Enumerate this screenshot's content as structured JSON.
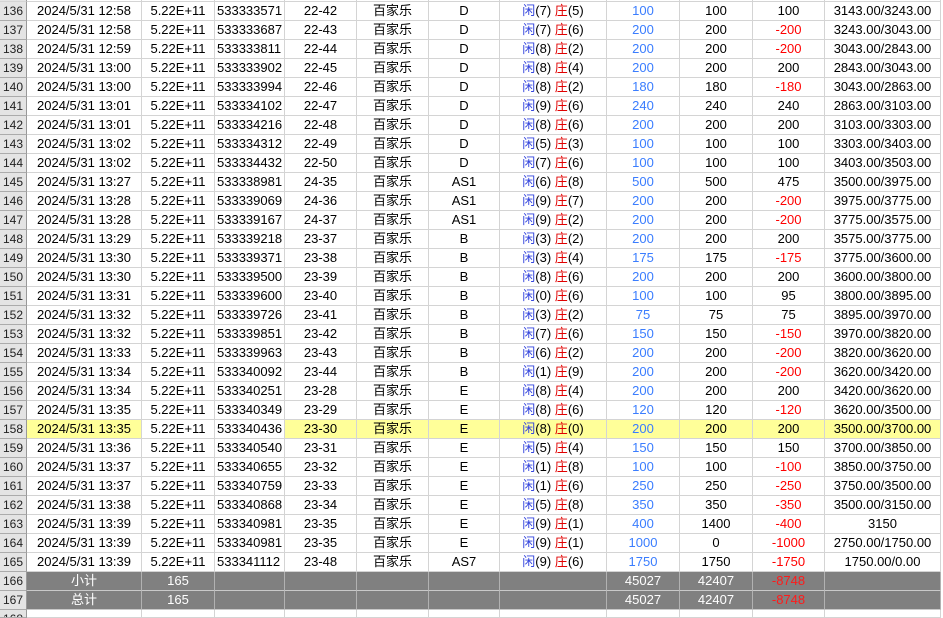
{
  "app": "spreadsheet-betting-ledger",
  "score_labels": {
    "player": "闲",
    "banker": "庄"
  },
  "colors": {
    "highlight_yellow": "#FFFF99",
    "summary_gray": "#808080",
    "bet_blue": "#3A7DFF",
    "player_blue": "#3344DD",
    "banker_red": "#E00000",
    "loss_red": "#FF0000",
    "gridline": "#D4D4D4",
    "row_header_bg": "#E4E4E4"
  },
  "partial_bottom_row_num": "168",
  "rows": [
    {
      "num": "136",
      "date": "2024/5/31 12:58",
      "sci": "5.22E+11",
      "account": "533333571",
      "table": "22-42",
      "game": "百家乐",
      "group": "D",
      "p": "7",
      "b": "5",
      "bet": "100",
      "valid": "100",
      "result": "100",
      "balance": "3143.00/3243.00",
      "hl": false
    },
    {
      "num": "137",
      "date": "2024/5/31 12:58",
      "sci": "5.22E+11",
      "account": "533333687",
      "table": "22-43",
      "game": "百家乐",
      "group": "D",
      "p": "7",
      "b": "6",
      "bet": "200",
      "valid": "200",
      "result": "-200",
      "balance": "3243.00/3043.00",
      "hl": false
    },
    {
      "num": "138",
      "date": "2024/5/31 12:59",
      "sci": "5.22E+11",
      "account": "533333811",
      "table": "22-44",
      "game": "百家乐",
      "group": "D",
      "p": "8",
      "b": "2",
      "bet": "200",
      "valid": "200",
      "result": "-200",
      "balance": "3043.00/2843.00",
      "hl": false
    },
    {
      "num": "139",
      "date": "2024/5/31 13:00",
      "sci": "5.22E+11",
      "account": "533333902",
      "table": "22-45",
      "game": "百家乐",
      "group": "D",
      "p": "8",
      "b": "4",
      "bet": "200",
      "valid": "200",
      "result": "200",
      "balance": "2843.00/3043.00",
      "hl": false
    },
    {
      "num": "140",
      "date": "2024/5/31 13:00",
      "sci": "5.22E+11",
      "account": "533333994",
      "table": "22-46",
      "game": "百家乐",
      "group": "D",
      "p": "8",
      "b": "2",
      "bet": "180",
      "valid": "180",
      "result": "-180",
      "balance": "3043.00/2863.00",
      "hl": false
    },
    {
      "num": "141",
      "date": "2024/5/31 13:01",
      "sci": "5.22E+11",
      "account": "533334102",
      "table": "22-47",
      "game": "百家乐",
      "group": "D",
      "p": "9",
      "b": "6",
      "bet": "240",
      "valid": "240",
      "result": "240",
      "balance": "2863.00/3103.00",
      "hl": false
    },
    {
      "num": "142",
      "date": "2024/5/31 13:01",
      "sci": "5.22E+11",
      "account": "533334216",
      "table": "22-48",
      "game": "百家乐",
      "group": "D",
      "p": "8",
      "b": "6",
      "bet": "200",
      "valid": "200",
      "result": "200",
      "balance": "3103.00/3303.00",
      "hl": false
    },
    {
      "num": "143",
      "date": "2024/5/31 13:02",
      "sci": "5.22E+11",
      "account": "533334312",
      "table": "22-49",
      "game": "百家乐",
      "group": "D",
      "p": "5",
      "b": "3",
      "bet": "100",
      "valid": "100",
      "result": "100",
      "balance": "3303.00/3403.00",
      "hl": false
    },
    {
      "num": "144",
      "date": "2024/5/31 13:02",
      "sci": "5.22E+11",
      "account": "533334432",
      "table": "22-50",
      "game": "百家乐",
      "group": "D",
      "p": "7",
      "b": "6",
      "bet": "100",
      "valid": "100",
      "result": "100",
      "balance": "3403.00/3503.00",
      "hl": false
    },
    {
      "num": "145",
      "date": "2024/5/31 13:27",
      "sci": "5.22E+11",
      "account": "533338981",
      "table": "24-35",
      "game": "百家乐",
      "group": "AS1",
      "p": "6",
      "b": "8",
      "bet": "500",
      "valid": "500",
      "result": "475",
      "balance": "3500.00/3975.00",
      "hl": false
    },
    {
      "num": "146",
      "date": "2024/5/31 13:28",
      "sci": "5.22E+11",
      "account": "533339069",
      "table": "24-36",
      "game": "百家乐",
      "group": "AS1",
      "p": "9",
      "b": "7",
      "bet": "200",
      "valid": "200",
      "result": "-200",
      "balance": "3975.00/3775.00",
      "hl": false
    },
    {
      "num": "147",
      "date": "2024/5/31 13:28",
      "sci": "5.22E+11",
      "account": "533339167",
      "table": "24-37",
      "game": "百家乐",
      "group": "AS1",
      "p": "9",
      "b": "2",
      "bet": "200",
      "valid": "200",
      "result": "-200",
      "balance": "3775.00/3575.00",
      "hl": false
    },
    {
      "num": "148",
      "date": "2024/5/31 13:29",
      "sci": "5.22E+11",
      "account": "533339218",
      "table": "23-37",
      "game": "百家乐",
      "group": "B",
      "p": "3",
      "b": "2",
      "bet": "200",
      "valid": "200",
      "result": "200",
      "balance": "3575.00/3775.00",
      "hl": false
    },
    {
      "num": "149",
      "date": "2024/5/31 13:30",
      "sci": "5.22E+11",
      "account": "533339371",
      "table": "23-38",
      "game": "百家乐",
      "group": "B",
      "p": "3",
      "b": "4",
      "bet": "175",
      "valid": "175",
      "result": "-175",
      "balance": "3775.00/3600.00",
      "hl": false
    },
    {
      "num": "150",
      "date": "2024/5/31 13:30",
      "sci": "5.22E+11",
      "account": "533339500",
      "table": "23-39",
      "game": "百家乐",
      "group": "B",
      "p": "8",
      "b": "6",
      "bet": "200",
      "valid": "200",
      "result": "200",
      "balance": "3600.00/3800.00",
      "hl": false
    },
    {
      "num": "151",
      "date": "2024/5/31 13:31",
      "sci": "5.22E+11",
      "account": "533339600",
      "table": "23-40",
      "game": "百家乐",
      "group": "B",
      "p": "0",
      "b": "6",
      "bet": "100",
      "valid": "100",
      "result": "95",
      "balance": "3800.00/3895.00",
      "hl": false
    },
    {
      "num": "152",
      "date": "2024/5/31 13:32",
      "sci": "5.22E+11",
      "account": "533339726",
      "table": "23-41",
      "game": "百家乐",
      "group": "B",
      "p": "3",
      "b": "2",
      "bet": "75",
      "valid": "75",
      "result": "75",
      "balance": "3895.00/3970.00",
      "hl": false
    },
    {
      "num": "153",
      "date": "2024/5/31 13:32",
      "sci": "5.22E+11",
      "account": "533339851",
      "table": "23-42",
      "game": "百家乐",
      "group": "B",
      "p": "7",
      "b": "6",
      "bet": "150",
      "valid": "150",
      "result": "-150",
      "balance": "3970.00/3820.00",
      "hl": false
    },
    {
      "num": "154",
      "date": "2024/5/31 13:33",
      "sci": "5.22E+11",
      "account": "533339963",
      "table": "23-43",
      "game": "百家乐",
      "group": "B",
      "p": "6",
      "b": "2",
      "bet": "200",
      "valid": "200",
      "result": "-200",
      "balance": "3820.00/3620.00",
      "hl": false
    },
    {
      "num": "155",
      "date": "2024/5/31 13:34",
      "sci": "5.22E+11",
      "account": "533340092",
      "table": "23-44",
      "game": "百家乐",
      "group": "B",
      "p": "1",
      "b": "9",
      "bet": "200",
      "valid": "200",
      "result": "-200",
      "balance": "3620.00/3420.00",
      "hl": false
    },
    {
      "num": "156",
      "date": "2024/5/31 13:34",
      "sci": "5.22E+11",
      "account": "533340251",
      "table": "23-28",
      "game": "百家乐",
      "group": "E",
      "p": "8",
      "b": "4",
      "bet": "200",
      "valid": "200",
      "result": "200",
      "balance": "3420.00/3620.00",
      "hl": false
    },
    {
      "num": "157",
      "date": "2024/5/31 13:35",
      "sci": "5.22E+11",
      "account": "533340349",
      "table": "23-29",
      "game": "百家乐",
      "group": "E",
      "p": "8",
      "b": "6",
      "bet": "120",
      "valid": "120",
      "result": "-120",
      "balance": "3620.00/3500.00",
      "hl": false
    },
    {
      "num": "158",
      "date": "2024/5/31 13:35",
      "sci": "5.22E+11",
      "account": "533340436",
      "table": "23-30",
      "game": "百家乐",
      "group": "E",
      "p": "8",
      "b": "0",
      "bet": "200",
      "valid": "200",
      "result": "200",
      "balance": "3500.00/3700.00",
      "hl": true
    },
    {
      "num": "159",
      "date": "2024/5/31 13:36",
      "sci": "5.22E+11",
      "account": "533340540",
      "table": "23-31",
      "game": "百家乐",
      "group": "E",
      "p": "5",
      "b": "4",
      "bet": "150",
      "valid": "150",
      "result": "150",
      "balance": "3700.00/3850.00",
      "hl": false
    },
    {
      "num": "160",
      "date": "2024/5/31 13:37",
      "sci": "5.22E+11",
      "account": "533340655",
      "table": "23-32",
      "game": "百家乐",
      "group": "E",
      "p": "1",
      "b": "8",
      "bet": "100",
      "valid": "100",
      "result": "-100",
      "balance": "3850.00/3750.00",
      "hl": false
    },
    {
      "num": "161",
      "date": "2024/5/31 13:37",
      "sci": "5.22E+11",
      "account": "533340759",
      "table": "23-33",
      "game": "百家乐",
      "group": "E",
      "p": "1",
      "b": "6",
      "bet": "250",
      "valid": "250",
      "result": "-250",
      "balance": "3750.00/3500.00",
      "hl": false
    },
    {
      "num": "162",
      "date": "2024/5/31 13:38",
      "sci": "5.22E+11",
      "account": "533340868",
      "table": "23-34",
      "game": "百家乐",
      "group": "E",
      "p": "5",
      "b": "8",
      "bet": "350",
      "valid": "350",
      "result": "-350",
      "balance": "3500.00/3150.00",
      "hl": false
    },
    {
      "num": "163",
      "date": "2024/5/31 13:39",
      "sci": "5.22E+11",
      "account": "533340981",
      "table": "23-35",
      "game": "百家乐",
      "group": "E",
      "p": "9",
      "b": "1",
      "bet": "400",
      "valid": "1400",
      "result": "-400",
      "balance": "3150",
      "hl": false
    },
    {
      "num": "164",
      "date": "2024/5/31 13:39",
      "sci": "5.22E+11",
      "account": "533340981",
      "table": "23-35",
      "game": "百家乐",
      "group": "E",
      "p": "9",
      "b": "1",
      "bet": "1000",
      "valid": "0",
      "result": "-1000",
      "balance": "2750.00/1750.00",
      "hl": false
    },
    {
      "num": "165",
      "date": "2024/5/31 13:39",
      "sci": "5.22E+11",
      "account": "533341112",
      "table": "23-48",
      "game": "百家乐",
      "group": "AS7",
      "p": "9",
      "b": "6",
      "bet": "1750",
      "valid": "1750",
      "result": "-1750",
      "balance": "1750.00/0.00",
      "hl": false
    }
  ],
  "summary_rows": [
    {
      "num": "166",
      "label": "小计",
      "count": "165",
      "bet": "45027",
      "valid": "42407",
      "result": "-8748"
    },
    {
      "num": "167",
      "label": "总计",
      "count": "165",
      "bet": "45027",
      "valid": "42407",
      "result": "-8748"
    }
  ]
}
